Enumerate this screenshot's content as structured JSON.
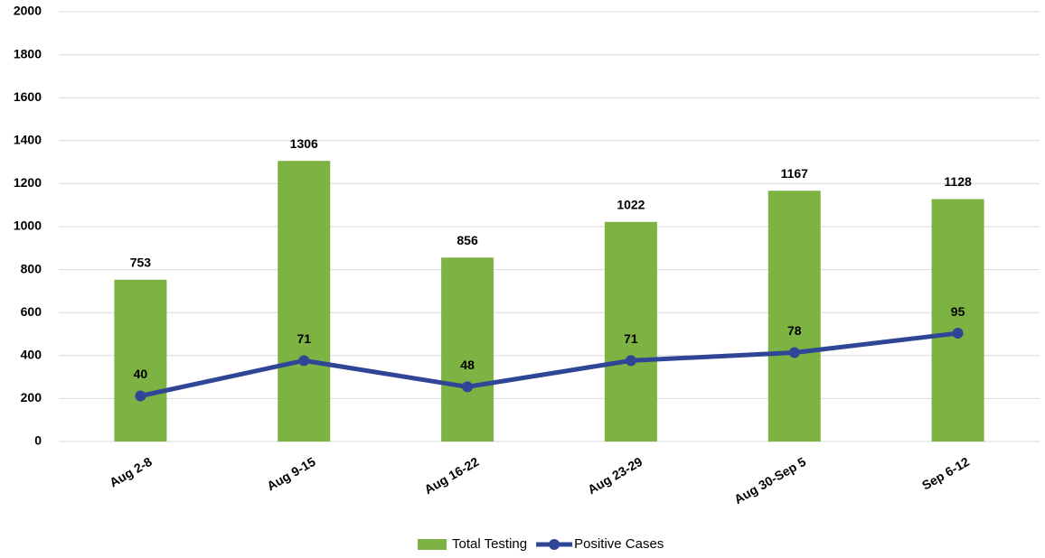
{
  "chart_data": {
    "type": "combo",
    "categories": [
      "Aug 2-8",
      "Aug 9-15",
      "Aug 16-22",
      "Aug 23-29",
      "Aug 30-Sep 5",
      "Sep 6-12"
    ],
    "series": [
      {
        "name": "Total Testing",
        "type": "bar",
        "color": "#7cb342",
        "values": [
          753,
          1306,
          856,
          1022,
          1167,
          1128
        ]
      },
      {
        "name": "Positive Cases",
        "type": "line",
        "axis": "y2",
        "color": "#2f4596",
        "values": [
          40,
          71,
          48,
          71,
          78,
          95
        ]
      }
    ],
    "ylim": [
      0,
      2000
    ],
    "yticks": [
      0,
      200,
      400,
      600,
      800,
      1000,
      1200,
      1400,
      1600,
      1800,
      2000
    ],
    "y2lim": [
      0,
      377
    ],
    "grid": true,
    "legend": "bottom"
  }
}
